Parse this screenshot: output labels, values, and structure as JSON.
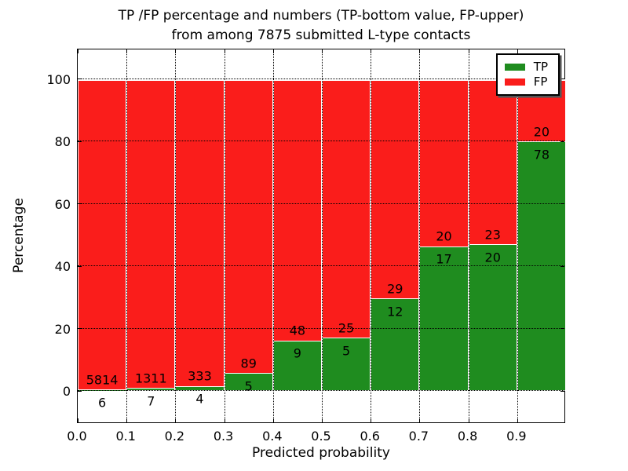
{
  "figure": {
    "title_line1": "TP /FP percentage and numbers (TP-bottom value, FP-upper)",
    "title_line2": "from among 7875 submitted L-type contacts",
    "xlabel": "Predicted probability",
    "ylabel": "Percentage"
  },
  "legend": {
    "position": "upper right",
    "items": [
      {
        "label": "TP",
        "color": "#1f8c1f"
      },
      {
        "label": "FP",
        "color": "#fa1d1b"
      }
    ]
  },
  "chart_data": {
    "type": "bar",
    "stacked": true,
    "normalized_to": 100,
    "title": "TP /FP percentage and numbers (TP-bottom value, FP-upper)\nfrom among 7875 submitted L-type contacts",
    "xlabel": "Predicted probability",
    "ylabel": "Percentage",
    "total_contacts": 7875,
    "bin_edges": [
      0.0,
      0.1,
      0.2,
      0.3,
      0.4,
      0.5,
      0.6,
      0.7,
      0.8,
      0.9,
      1.0
    ],
    "xticks": [
      "0.0",
      "0.1",
      "0.2",
      "0.3",
      "0.4",
      "0.5",
      "0.6",
      "0.7",
      "0.8",
      "0.9"
    ],
    "yticks": [
      0,
      20,
      40,
      60,
      80,
      100
    ],
    "xlim": [
      0.0,
      1.0
    ],
    "ylim": [
      -10,
      110
    ],
    "grid": "dotted",
    "legend_position": "upper right",
    "series": [
      {
        "name": "TP",
        "color": "#1f8c1f",
        "counts": [
          6,
          7,
          4,
          5,
          9,
          5,
          12,
          17,
          20,
          78
        ]
      },
      {
        "name": "FP",
        "color": "#fa1d1b",
        "counts": [
          5814,
          1311,
          333,
          89,
          48,
          25,
          29,
          20,
          23,
          20
        ]
      }
    ],
    "tp_percent": [
      0.1,
      0.53,
      1.19,
      5.32,
      15.79,
      16.67,
      29.27,
      45.95,
      46.51,
      79.59
    ]
  }
}
